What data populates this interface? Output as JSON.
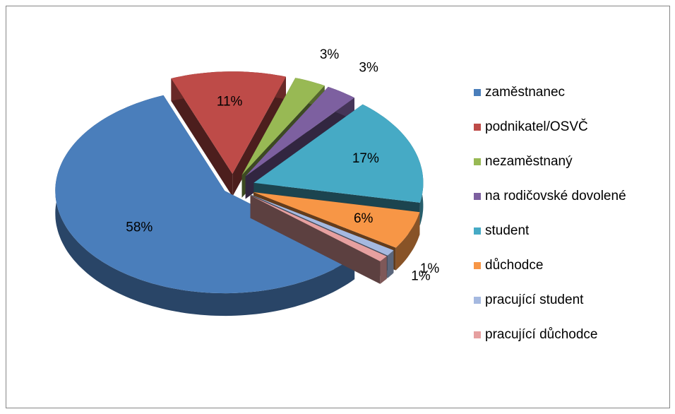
{
  "chart_data": {
    "type": "pie",
    "categories": [
      "zaměstnanec",
      "podnikatel/OSVČ",
      "nezaměstnaný",
      "na rodičovské dovolené",
      "student",
      "důchodce",
      "pracující student",
      "pracující důchodce"
    ],
    "values": [
      58,
      11,
      3,
      3,
      17,
      6,
      1,
      1
    ],
    "value_labels": [
      "58%",
      "11%",
      "3%",
      "3%",
      "17%",
      "6%",
      "1%",
      "1%"
    ],
    "colors": [
      "#4a7ebb",
      "#be4b48",
      "#98b954",
      "#7d60a0",
      "#46aac5",
      "#f79646",
      "#a5b9e0",
      "#e6a0a0"
    ],
    "legend": "right"
  }
}
